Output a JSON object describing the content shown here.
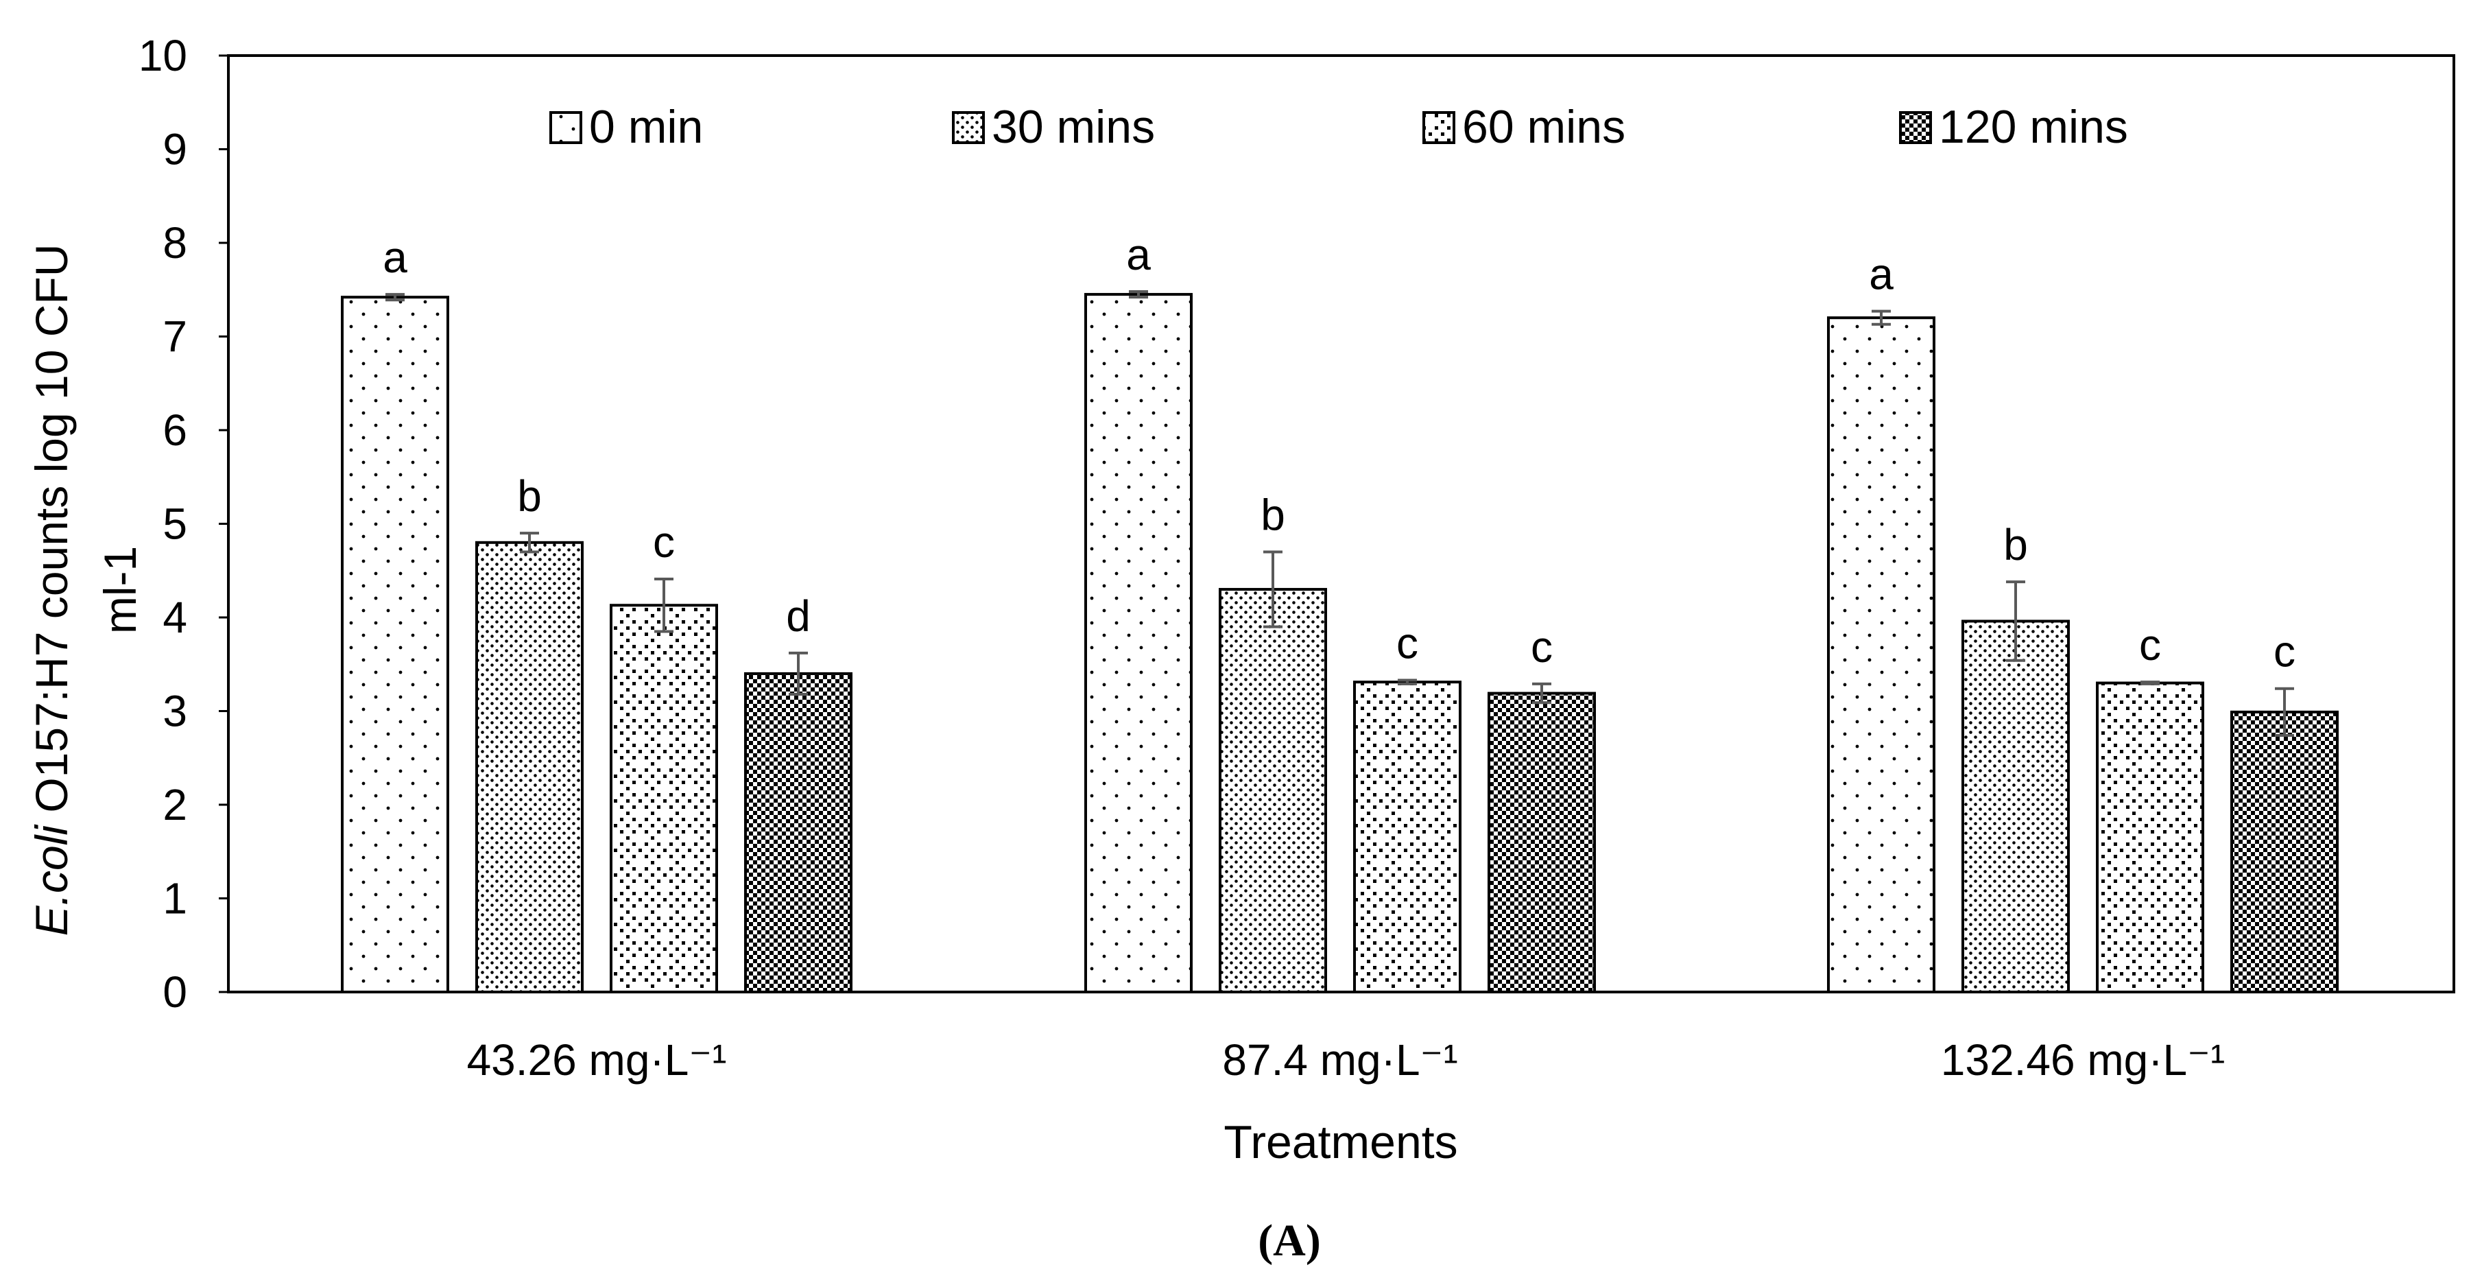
{
  "chart_data": {
    "type": "bar",
    "title": "",
    "panel_label": "(A)",
    "xlabel": "Treatments",
    "ylabel_italic": "E.coli",
    "ylabel_rest": " O157:H7 counts log 10 CFU",
    "ylabel_line2": "ml-1",
    "ylim": [
      0,
      10
    ],
    "yticks": [
      0,
      1,
      2,
      3,
      4,
      5,
      6,
      7,
      8,
      9,
      10
    ],
    "grid": false,
    "legend_position": "top",
    "categories": [
      "43.26 mg·L⁻¹",
      "87.4 mg·L⁻¹",
      "132.46 mg·L⁻¹"
    ],
    "series": [
      {
        "name": "0 min",
        "pattern": "sparse-dots",
        "values": [
          7.42,
          7.45,
          7.2
        ],
        "errors": [
          0.03,
          0.03,
          0.07
        ],
        "letters": [
          "a",
          "a",
          "a"
        ]
      },
      {
        "name": "30 mins",
        "pattern": "dense-dots",
        "values": [
          4.8,
          4.3,
          3.96
        ],
        "errors": [
          0.1,
          0.4,
          0.42
        ],
        "letters": [
          "b",
          "b",
          "b"
        ]
      },
      {
        "name": "60 mins",
        "pattern": "diamond-dots",
        "values": [
          4.13,
          3.31,
          3.3
        ],
        "errors": [
          0.28,
          0.02,
          0.01
        ],
        "letters": [
          "c",
          "c",
          "c"
        ]
      },
      {
        "name": "120 mins",
        "pattern": "checker",
        "values": [
          3.4,
          3.19,
          2.99
        ],
        "errors": [
          0.22,
          0.1,
          0.25
        ],
        "letters": [
          "d",
          "c",
          "c"
        ]
      }
    ]
  }
}
